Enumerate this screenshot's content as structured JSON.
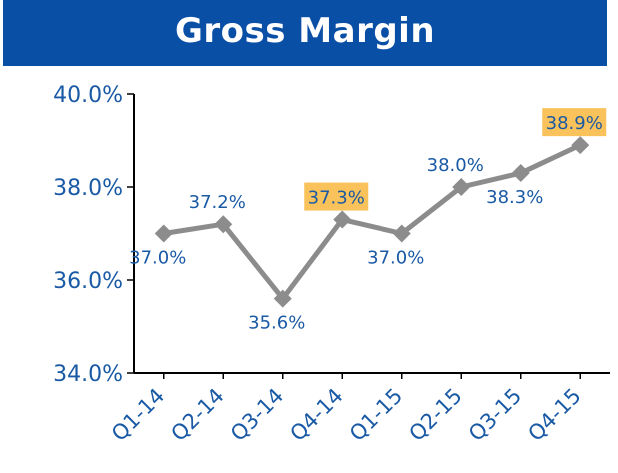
{
  "header": {
    "title": "Gross Margin"
  },
  "chart_data": {
    "type": "line",
    "title": "Gross Margin",
    "xlabel": "",
    "ylabel": "",
    "categories": [
      "Q1-14",
      "Q2-14",
      "Q3-14",
      "Q4-14",
      "Q1-15",
      "Q2-15",
      "Q3-15",
      "Q4-15"
    ],
    "series": [
      {
        "values": [
          37.0,
          37.2,
          35.6,
          37.3,
          37.0,
          38.0,
          38.3,
          38.9
        ],
        "labels": [
          "37.0%",
          "37.2%",
          "35.6%",
          "37.3%",
          "37.0%",
          "38.0%",
          "38.3%",
          "38.9%"
        ],
        "highlighted": [
          false,
          false,
          false,
          true,
          false,
          false,
          false,
          true
        ]
      }
    ],
    "ylim": [
      34.0,
      40.0
    ],
    "yticks": [
      "34.0%",
      "36.0%",
      "38.0%",
      "40.0%"
    ],
    "grid": false,
    "colors": {
      "header_bg": "#0a4fa6",
      "line": "#8c8c8c",
      "text": "#1a5aa5",
      "highlight": "#f9c25a",
      "axis": "#000000"
    }
  }
}
